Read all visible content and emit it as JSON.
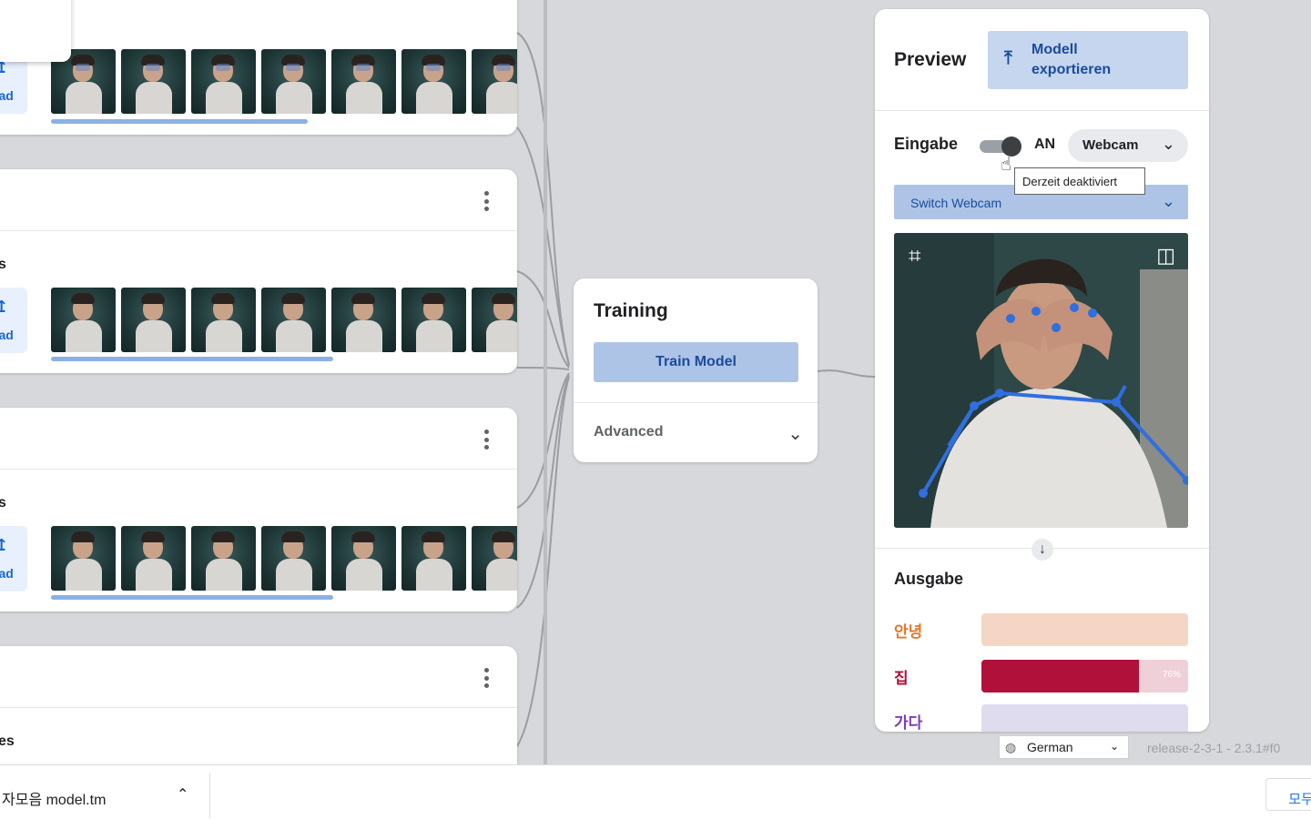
{
  "class_cards": [
    {
      "label": "",
      "upload_label": "load"
    },
    {
      "label": "s",
      "upload_label": "load"
    },
    {
      "label": "s",
      "upload_label": "load"
    },
    {
      "label": "es"
    }
  ],
  "training": {
    "title": "Training",
    "train_button": "Train Model",
    "advanced_label": "Advanced"
  },
  "preview": {
    "title": "Preview",
    "export_button": "Modell exportieren",
    "input_label": "Eingabe",
    "toggle_state": "AN",
    "source_select": "Webcam",
    "tooltip": "Derzeit deaktiviert",
    "switch_webcam": "Switch Webcam",
    "output_label": "Ausgabe",
    "outputs": [
      {
        "label": "안녕",
        "percent": 0,
        "percent_text": "",
        "color": "#e8762c",
        "track_color": "#f5d6c6"
      },
      {
        "label": "집",
        "percent": 76,
        "percent_text": "76%",
        "color": "#b0103a",
        "track_color": "#f0d0d8"
      },
      {
        "label": "가다",
        "percent": 0,
        "percent_text": "",
        "color": "#7b3fb5",
        "track_color": "#e0dcef"
      }
    ]
  },
  "footer": {
    "language": "German",
    "release": "release-2-3-1 - 2.3.1#f0"
  },
  "download_bar": {
    "filename": "자모음 model.tm",
    "show_all": "모두"
  },
  "colors": {
    "accent": "#1a4b9c",
    "button_bg": "#aec4e6",
    "progress": "#8ab0e6",
    "skeleton": "#2f6fe0"
  },
  "icons": {
    "export": "export-upload-icon",
    "crop": "crop-icon",
    "flip": "flip-icon",
    "globe": "globe-icon"
  }
}
